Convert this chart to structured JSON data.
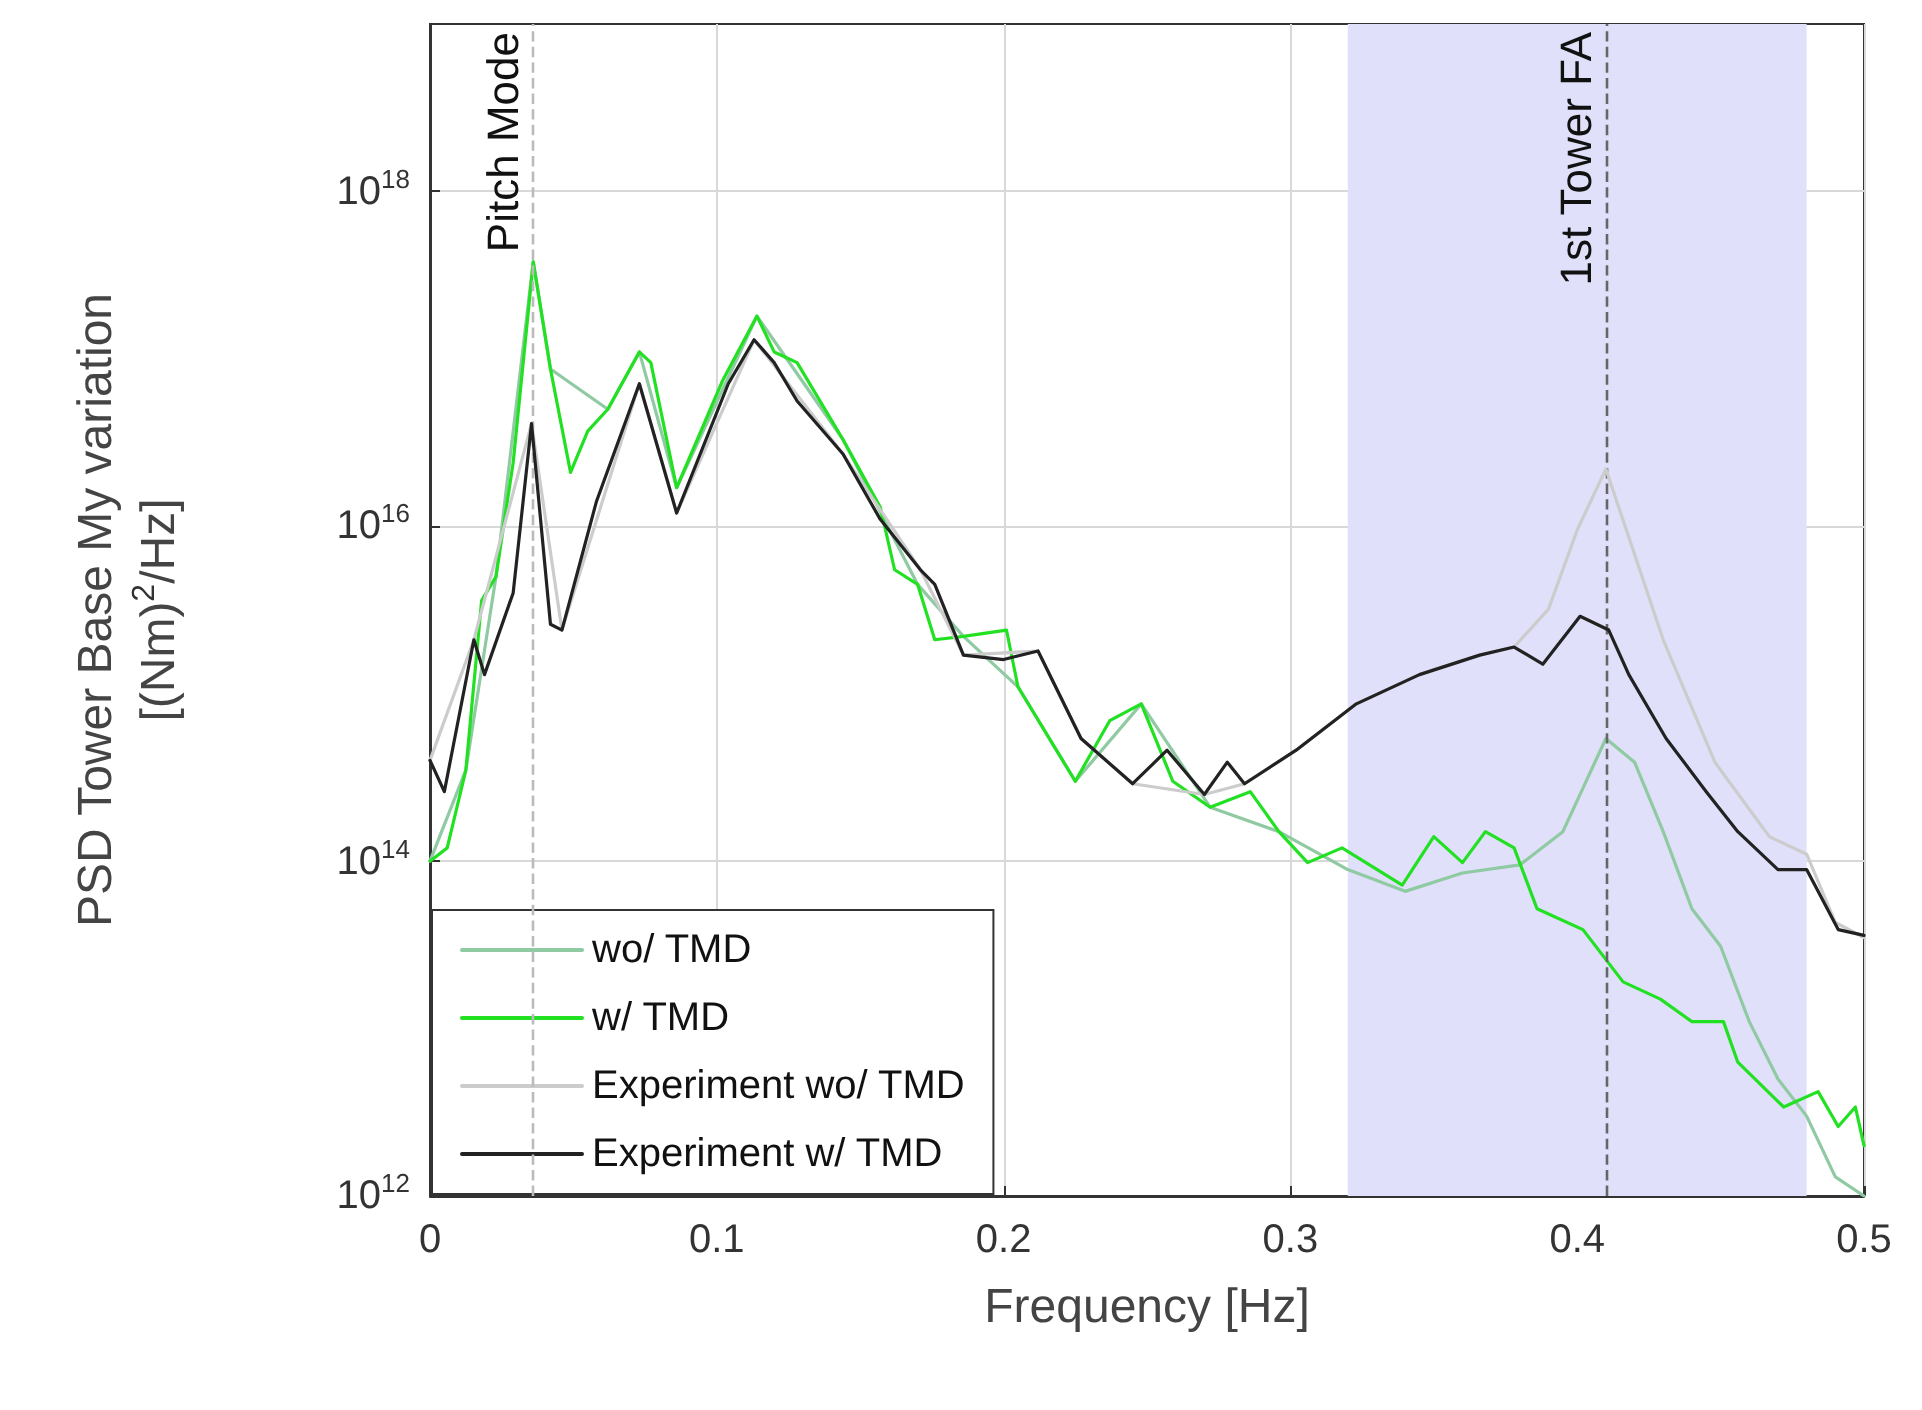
{
  "chart_data": {
    "type": "line",
    "xlabel": "Frequency [Hz]",
    "ylabel": "PSD Tower Base My variation\n[(Nm)$^{2}$/Hz]",
    "xlim": [
      0,
      0.5
    ],
    "xticks": [
      0,
      0.1,
      0.2,
      0.3,
      0.4,
      0.5
    ],
    "ylim": [
      1000000000000.0,
      1e+19
    ],
    "yticks": [
      {
        "value": 1000000000000.0,
        "label": "10$^{12}$"
      },
      {
        "value": 100000000000000.0,
        "label": "10$^{14}$"
      },
      {
        "value": 1e+16,
        "label": "10$^{16}$"
      },
      {
        "value": 1e+18,
        "label": "10$^{18}$"
      }
    ],
    "log": "y",
    "grid": true,
    "legend": "bottom left",
    "marker": "none",
    "line_style": "solid",
    "ref_lines": [
      {
        "axis": "x",
        "value": 0.036,
        "label": "Pitch Mode",
        "color": "#bbbbbb",
        "line_style": "dashed"
      },
      {
        "axis": "x",
        "value": 0.41,
        "label": "1st Tower FA",
        "color": "#666666",
        "line_style": "dashed"
      }
    ],
    "bands": [
      {
        "axis": "x",
        "from": 0.32,
        "to": 0.48,
        "label": null,
        "color": "#e0e0fa"
      }
    ],
    "series": [
      {
        "name": "wo/ TMD",
        "color": "#8fcaa2",
        "x": [
          0,
          0.0125,
          0.023,
          0.036,
          0.042,
          0.062,
          0.073,
          0.086,
          0.114,
          0.144,
          0.17,
          0.186,
          0.205,
          0.225,
          0.248,
          0.272,
          0.296,
          0.32,
          0.34,
          0.36,
          0.38,
          0.395,
          0.41,
          0.42,
          0.43,
          0.44,
          0.45,
          0.46,
          0.47,
          0.48,
          0.49,
          0.5
        ],
        "values": [
          100000000000000.0,
          350000000000000.0,
          5000000000000000.0,
          3.8e+17,
          8.7e+16,
          5e+16,
          1.1e+17,
          1.7e+16,
          1.8e+17,
          3.3e+16,
          4500000000000000.0,
          2200000000000000.0,
          1100000000000000.0,
          300000000000000.0,
          870000000000000.0,
          210000000000000.0,
          150000000000000.0,
          89000000000000.0,
          66000000000000.0,
          85000000000000.0,
          95000000000000.0,
          150000000000000.0,
          540000000000000.0,
          390000000000000.0,
          150000000000000.0,
          52000000000000.0,
          31000000000000.0,
          11000000000000.0,
          5000000000000.0,
          3000000000000.0,
          1300000000000.0,
          1000000000000.0
        ]
      },
      {
        "name": "w/ TMD",
        "color": "#22e022",
        "x": [
          0,
          0.006,
          0.0125,
          0.018,
          0.023,
          0.029,
          0.036,
          0.042,
          0.049,
          0.055,
          0.062,
          0.073,
          0.077,
          0.086,
          0.102,
          0.114,
          0.12,
          0.128,
          0.144,
          0.157,
          0.162,
          0.17,
          0.176,
          0.186,
          0.201,
          0.205,
          0.225,
          0.237,
          0.248,
          0.259,
          0.272,
          0.286,
          0.296,
          0.306,
          0.318,
          0.339,
          0.35,
          0.36,
          0.368,
          0.378,
          0.386,
          0.402,
          0.416,
          0.429,
          0.44,
          0.451,
          0.456,
          0.472,
          0.484,
          0.491,
          0.497,
          0.5
        ],
        "values": [
          100000000000000.0,
          120000000000000.0,
          350000000000000.0,
          3600000000000000.0,
          5000000000000000.0,
          2.4e+16,
          3.8e+17,
          8.7e+16,
          2.1e+16,
          3.7e+16,
          5e+16,
          1.1e+17,
          9.5e+16,
          1.7e+16,
          7.4e+16,
          1.8e+17,
          1.1e+17,
          9.5e+16,
          3.3e+16,
          1.3e+16,
          5500000000000000.0,
          4500000000000000.0,
          2100000000000000.0,
          2200000000000000.0,
          2400000000000000.0,
          1100000000000000.0,
          300000000000000.0,
          690000000000000.0,
          870000000000000.0,
          300000000000000.0,
          210000000000000.0,
          260000000000000.0,
          150000000000000.0,
          98000000000000.0,
          120000000000000.0,
          72000000000000.0,
          140000000000000.0,
          98000000000000.0,
          150000000000000.0,
          120000000000000.0,
          52000000000000.0,
          39000000000000.0,
          19000000000000.0,
          15000000000000.0,
          11000000000000.0,
          11000000000000.0,
          6300000000000.0,
          3400000000000.0,
          4200000000000.0,
          2600000000000.0,
          3400000000000.0,
          2000000000000.0
        ]
      },
      {
        "name": "Experiment wo/ TMD",
        "color": "#cccccc",
        "x": [
          0,
          0.0153,
          0.0354,
          0.046,
          0.073,
          0.086,
          0.113,
          0.144,
          0.171,
          0.186,
          0.212,
          0.227,
          0.245,
          0.27,
          0.284,
          0.302,
          0.323,
          0.345,
          0.366,
          0.378,
          0.39,
          0.4,
          0.41,
          0.43,
          0.448,
          0.467,
          0.48,
          0.49,
          0.5
        ],
        "values": [
          400000000000000.0,
          2100000000000000.0,
          4.1e+16,
          2400000000000000.0,
          7.1e+16,
          1.2e+16,
          1.3e+17,
          2.7e+16,
          5500000000000000.0,
          1700000000000000.0,
          1800000000000000.0,
          540000000000000.0,
          290000000000000.0,
          250000000000000.0,
          290000000000000.0,
          460000000000000.0,
          870000000000000.0,
          1300000000000000.0,
          1700000000000000.0,
          1900000000000000.0,
          3200000000000000.0,
          9500000000000000.0,
          2.2e+16,
          2100000000000000.0,
          390000000000000.0,
          140000000000000.0,
          110000000000000.0,
          43000000000000.0,
          35000000000000.0
        ]
      },
      {
        "name": "Experiment w/ TMD",
        "color": "#222222",
        "x": [
          0,
          0.005,
          0.0153,
          0.019,
          0.029,
          0.0354,
          0.042,
          0.046,
          0.058,
          0.073,
          0.086,
          0.104,
          0.113,
          0.12,
          0.128,
          0.144,
          0.157,
          0.171,
          0.176,
          0.186,
          0.2,
          0.212,
          0.227,
          0.245,
          0.257,
          0.27,
          0.278,
          0.284,
          0.302,
          0.323,
          0.345,
          0.366,
          0.378,
          0.388,
          0.401,
          0.411,
          0.418,
          0.431,
          0.445,
          0.456,
          0.47,
          0.48,
          0.491,
          0.5
        ],
        "values": [
          400000000000000.0,
          260000000000000.0,
          2100000000000000.0,
          1300000000000000.0,
          4000000000000000.0,
          4.1e+16,
          2600000000000000.0,
          2400000000000000.0,
          1.4e+16,
          7.1e+16,
          1.2e+16,
          7.1e+16,
          1.3e+17,
          9.5e+16,
          5.6e+16,
          2.7e+16,
          1.1e+16,
          5500000000000000.0,
          4500000000000000.0,
          1700000000000000.0,
          1600000000000000.0,
          1800000000000000.0,
          540000000000000.0,
          290000000000000.0,
          460000000000000.0,
          250000000000000.0,
          390000000000000.0,
          290000000000000.0,
          460000000000000.0,
          870000000000000.0,
          1300000000000000.0,
          1700000000000000.0,
          1900000000000000.0,
          1500000000000000.0,
          2900000000000000.0,
          2400000000000000.0,
          1300000000000000.0,
          540000000000000.0,
          260000000000000.0,
          150000000000000.0,
          89000000000000.0,
          89000000000000.0,
          39000000000000.0,
          36000000000000.0
        ]
      }
    ]
  }
}
